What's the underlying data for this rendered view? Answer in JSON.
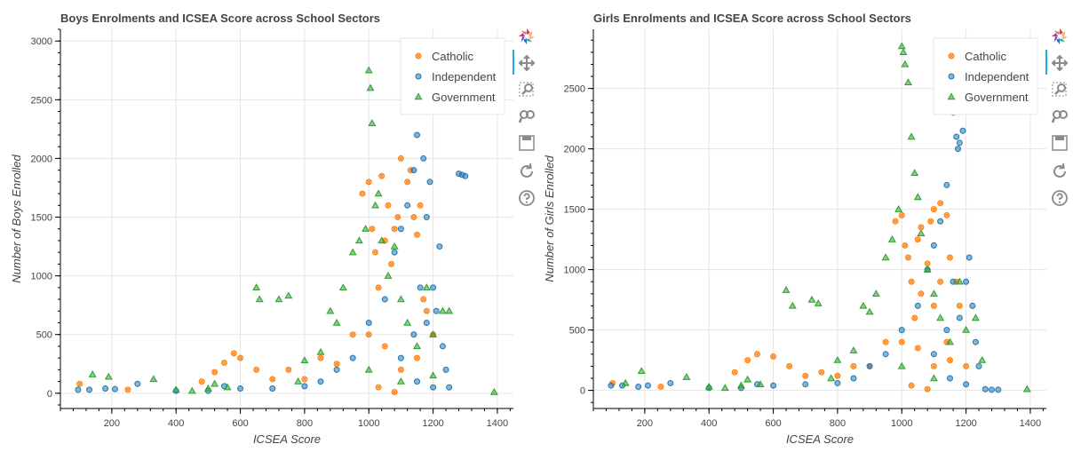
{
  "colors": {
    "Catholic": "#ff7f0e",
    "Independent": "#1f77b4",
    "Government": "#2ca02c"
  },
  "toolbar_icons": [
    "bokeh-logo-icon",
    "pan-icon",
    "box-zoom-icon",
    "wheel-zoom-icon",
    "save-icon",
    "reset-icon",
    "help-icon"
  ],
  "chart_data": [
    {
      "type": "scatter",
      "title": "Boys Enrolments and ICSEA Score across School Sectors",
      "xlabel": "ICSEA Score",
      "ylabel": "Number of Boys Enrolled",
      "xlim": [
        40,
        1450
      ],
      "ylim": [
        -130,
        3100
      ],
      "x_ticks": [
        200,
        400,
        600,
        800,
        1000,
        1200,
        1400
      ],
      "y_ticks": [
        0,
        500,
        1000,
        1500,
        2000,
        2500,
        3000
      ],
      "grid": true,
      "legend_location": "top-right",
      "series": [
        {
          "name": "Catholic",
          "marker": "circle-x",
          "points": [
            [
              100,
              80
            ],
            [
              250,
              30
            ],
            [
              480,
              100
            ],
            [
              520,
              180
            ],
            [
              550,
              260
            ],
            [
              580,
              340
            ],
            [
              600,
              300
            ],
            [
              650,
              200
            ],
            [
              700,
              120
            ],
            [
              750,
              200
            ],
            [
              800,
              120
            ],
            [
              850,
              300
            ],
            [
              900,
              250
            ],
            [
              950,
              500
            ],
            [
              980,
              1700
            ],
            [
              1000,
              1800
            ],
            [
              1010,
              1400
            ],
            [
              1020,
              1200
            ],
            [
              1030,
              900
            ],
            [
              1040,
              1850
            ],
            [
              1050,
              1300
            ],
            [
              1060,
              1600
            ],
            [
              1070,
              1100
            ],
            [
              1080,
              1400
            ],
            [
              1090,
              1500
            ],
            [
              1100,
              2000
            ],
            [
              1120,
              1800
            ],
            [
              1130,
              1900
            ],
            [
              1140,
              1500
            ],
            [
              1150,
              1350
            ],
            [
              1160,
              1600
            ],
            [
              1170,
              800
            ],
            [
              1180,
              700
            ],
            [
              1000,
              500
            ],
            [
              1050,
              400
            ],
            [
              1100,
              200
            ],
            [
              1150,
              300
            ],
            [
              1200,
              500
            ],
            [
              1030,
              50
            ],
            [
              1080,
              10
            ]
          ]
        },
        {
          "name": "Independent",
          "marker": "circle",
          "points": [
            [
              95,
              30
            ],
            [
              130,
              30
            ],
            [
              180,
              40
            ],
            [
              210,
              35
            ],
            [
              280,
              80
            ],
            [
              400,
              20
            ],
            [
              500,
              20
            ],
            [
              550,
              60
            ],
            [
              600,
              40
            ],
            [
              700,
              40
            ],
            [
              800,
              60
            ],
            [
              850,
              100
            ],
            [
              900,
              200
            ],
            [
              950,
              300
            ],
            [
              1000,
              600
            ],
            [
              1050,
              800
            ],
            [
              1080,
              1200
            ],
            [
              1100,
              1400
            ],
            [
              1120,
              1600
            ],
            [
              1140,
              1900
            ],
            [
              1150,
              2200
            ],
            [
              1160,
              2400
            ],
            [
              1170,
              2000
            ],
            [
              1180,
              1500
            ],
            [
              1190,
              1800
            ],
            [
              1200,
              900
            ],
            [
              1210,
              700
            ],
            [
              1220,
              1250
            ],
            [
              1230,
              400
            ],
            [
              1240,
              200
            ],
            [
              1250,
              50
            ],
            [
              1280,
              1870
            ],
            [
              1290,
              1860
            ],
            [
              1300,
              1850
            ],
            [
              1100,
              300
            ],
            [
              1150,
              100
            ],
            [
              1200,
              50
            ],
            [
              1180,
              600
            ],
            [
              1160,
              900
            ],
            [
              1140,
              500
            ]
          ]
        },
        {
          "name": "Government",
          "marker": "triangle",
          "points": [
            [
              140,
              160
            ],
            [
              190,
              140
            ],
            [
              330,
              120
            ],
            [
              400,
              30
            ],
            [
              450,
              20
            ],
            [
              500,
              40
            ],
            [
              520,
              80
            ],
            [
              560,
              50
            ],
            [
              650,
              900
            ],
            [
              660,
              800
            ],
            [
              720,
              800
            ],
            [
              750,
              830
            ],
            [
              780,
              100
            ],
            [
              800,
              280
            ],
            [
              850,
              350
            ],
            [
              880,
              700
            ],
            [
              900,
              600
            ],
            [
              920,
              900
            ],
            [
              950,
              1200
            ],
            [
              970,
              1300
            ],
            [
              990,
              1400
            ],
            [
              1000,
              2750
            ],
            [
              1005,
              2600
            ],
            [
              1010,
              2300
            ],
            [
              1020,
              1600
            ],
            [
              1030,
              1700
            ],
            [
              1040,
              1300
            ],
            [
              1060,
              1000
            ],
            [
              1080,
              1250
            ],
            [
              1100,
              800
            ],
            [
              1120,
              600
            ],
            [
              1150,
              400
            ],
            [
              1180,
              900
            ],
            [
              1200,
              500
            ],
            [
              1230,
              700
            ],
            [
              1250,
              700
            ],
            [
              1000,
              200
            ],
            [
              1100,
              100
            ],
            [
              1200,
              150
            ],
            [
              1390,
              10
            ]
          ]
        }
      ]
    },
    {
      "type": "scatter",
      "title": "Girls Enrolments and ICSEA Score across School Sectors",
      "xlabel": "ICSEA Score",
      "ylabel": "Number of Girls Enrolled",
      "xlim": [
        40,
        1450
      ],
      "ylim": [
        -150,
        2990
      ],
      "x_ticks": [
        200,
        400,
        600,
        800,
        1000,
        1200,
        1400
      ],
      "y_ticks": [
        0,
        500,
        1000,
        1500,
        2000,
        2500
      ],
      "grid": true,
      "legend_location": "top-right",
      "series": [
        {
          "name": "Catholic",
          "marker": "circle-x",
          "points": [
            [
              100,
              60
            ],
            [
              250,
              30
            ],
            [
              480,
              150
            ],
            [
              520,
              250
            ],
            [
              550,
              300
            ],
            [
              600,
              280
            ],
            [
              650,
              200
            ],
            [
              700,
              120
            ],
            [
              750,
              150
            ],
            [
              800,
              120
            ],
            [
              850,
              200
            ],
            [
              900,
              200
            ],
            [
              950,
              400
            ],
            [
              980,
              1400
            ],
            [
              1000,
              1450
            ],
            [
              1010,
              1200
            ],
            [
              1020,
              1100
            ],
            [
              1030,
              900
            ],
            [
              1050,
              1250
            ],
            [
              1060,
              1350
            ],
            [
              1080,
              1050
            ],
            [
              1090,
              1400
            ],
            [
              1100,
              1500
            ],
            [
              1120,
              1550
            ],
            [
              1140,
              1450
            ],
            [
              1150,
              1100
            ],
            [
              1170,
              900
            ],
            [
              1180,
              700
            ],
            [
              1000,
              400
            ],
            [
              1050,
              350
            ],
            [
              1100,
              200
            ],
            [
              1150,
              250
            ],
            [
              1200,
              200
            ],
            [
              1030,
              40
            ],
            [
              1080,
              10
            ],
            [
              1100,
              700
            ],
            [
              1060,
              800
            ],
            [
              1040,
              600
            ],
            [
              1120,
              900
            ],
            [
              1140,
              400
            ]
          ]
        },
        {
          "name": "Independent",
          "marker": "circle",
          "points": [
            [
              95,
              40
            ],
            [
              130,
              40
            ],
            [
              180,
              30
            ],
            [
              210,
              40
            ],
            [
              280,
              60
            ],
            [
              400,
              20
            ],
            [
              500,
              20
            ],
            [
              550,
              50
            ],
            [
              600,
              40
            ],
            [
              700,
              50
            ],
            [
              800,
              60
            ],
            [
              850,
              100
            ],
            [
              900,
              200
            ],
            [
              950,
              300
            ],
            [
              1000,
              500
            ],
            [
              1050,
              700
            ],
            [
              1080,
              1000
            ],
            [
              1100,
              1200
            ],
            [
              1120,
              1400
            ],
            [
              1140,
              1700
            ],
            [
              1150,
              2600
            ],
            [
              1160,
              2300
            ],
            [
              1170,
              2100
            ],
            [
              1180,
              2050
            ],
            [
              1190,
              2150
            ],
            [
              1200,
              900
            ],
            [
              1210,
              1100
            ],
            [
              1220,
              700
            ],
            [
              1230,
              400
            ],
            [
              1240,
              200
            ],
            [
              1260,
              10
            ],
            [
              1280,
              5
            ],
            [
              1300,
              5
            ],
            [
              1100,
              300
            ],
            [
              1150,
              100
            ],
            [
              1200,
              50
            ],
            [
              1180,
              600
            ],
            [
              1160,
              900
            ],
            [
              1140,
              500
            ],
            [
              1175,
              2000
            ]
          ]
        },
        {
          "name": "Government",
          "marker": "triangle",
          "points": [
            [
              140,
              60
            ],
            [
              190,
              160
            ],
            [
              330,
              110
            ],
            [
              400,
              30
            ],
            [
              450,
              20
            ],
            [
              500,
              40
            ],
            [
              520,
              90
            ],
            [
              560,
              50
            ],
            [
              640,
              830
            ],
            [
              660,
              700
            ],
            [
              720,
              750
            ],
            [
              740,
              720
            ],
            [
              780,
              100
            ],
            [
              800,
              250
            ],
            [
              850,
              330
            ],
            [
              880,
              700
            ],
            [
              900,
              650
            ],
            [
              920,
              800
            ],
            [
              950,
              1100
            ],
            [
              970,
              1250
            ],
            [
              990,
              1500
            ],
            [
              1000,
              2850
            ],
            [
              1005,
              2800
            ],
            [
              1010,
              2700
            ],
            [
              1020,
              2550
            ],
            [
              1030,
              2100
            ],
            [
              1040,
              1800
            ],
            [
              1050,
              1600
            ],
            [
              1060,
              1300
            ],
            [
              1080,
              1000
            ],
            [
              1100,
              800
            ],
            [
              1120,
              600
            ],
            [
              1150,
              400
            ],
            [
              1180,
              900
            ],
            [
              1200,
              500
            ],
            [
              1230,
              600
            ],
            [
              1250,
              250
            ],
            [
              1000,
              200
            ],
            [
              1100,
              100
            ],
            [
              1390,
              10
            ]
          ]
        }
      ]
    }
  ]
}
